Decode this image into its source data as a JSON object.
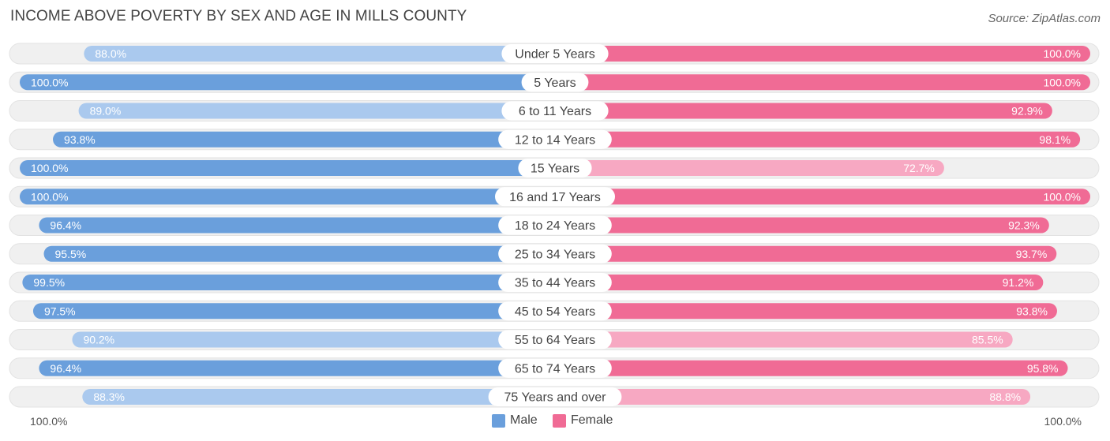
{
  "header": {
    "title": "INCOME ABOVE POVERTY BY SEX AND AGE IN MILLS COUNTY",
    "source": "Source: ZipAtlas.com"
  },
  "axis": {
    "left_label": "100.0%",
    "right_label": "100.0%"
  },
  "legend": {
    "male_label": "Male",
    "female_label": "Female"
  },
  "colors": {
    "male_strong": "#6a9fdc",
    "male_light": "#aac9ee",
    "female_strong": "#f06b95",
    "female_light": "#f7a8c2",
    "track": "#f0f0f0"
  },
  "chart_data": {
    "type": "bar",
    "orientation": "horizontal-diverging",
    "title": "INCOME ABOVE POVERTY BY SEX AND AGE IN MILLS COUNTY",
    "xlim": [
      0,
      100
    ],
    "unit": "%",
    "categories": [
      "Under 5 Years",
      "5 Years",
      "6 to 11 Years",
      "12 to 14 Years",
      "15 Years",
      "16 and 17 Years",
      "18 to 24 Years",
      "25 to 34 Years",
      "35 to 44 Years",
      "45 to 54 Years",
      "55 to 64 Years",
      "65 to 74 Years",
      "75 Years and over"
    ],
    "series": [
      {
        "name": "Male",
        "values": [
          88.0,
          100.0,
          89.0,
          93.8,
          100.0,
          100.0,
          96.4,
          95.5,
          99.5,
          97.5,
          90.2,
          96.4,
          88.3
        ],
        "labels": [
          "88.0%",
          "100.0%",
          "89.0%",
          "93.8%",
          "100.0%",
          "100.0%",
          "96.4%",
          "95.5%",
          "99.5%",
          "97.5%",
          "90.2%",
          "96.4%",
          "88.3%"
        ]
      },
      {
        "name": "Female",
        "values": [
          100.0,
          100.0,
          92.9,
          98.1,
          72.7,
          100.0,
          92.3,
          93.7,
          91.2,
          93.8,
          85.5,
          95.8,
          88.8
        ],
        "labels": [
          "100.0%",
          "100.0%",
          "92.9%",
          "98.1%",
          "72.7%",
          "100.0%",
          "92.3%",
          "93.7%",
          "91.2%",
          "93.8%",
          "85.5%",
          "95.8%",
          "88.8%"
        ]
      }
    ]
  }
}
